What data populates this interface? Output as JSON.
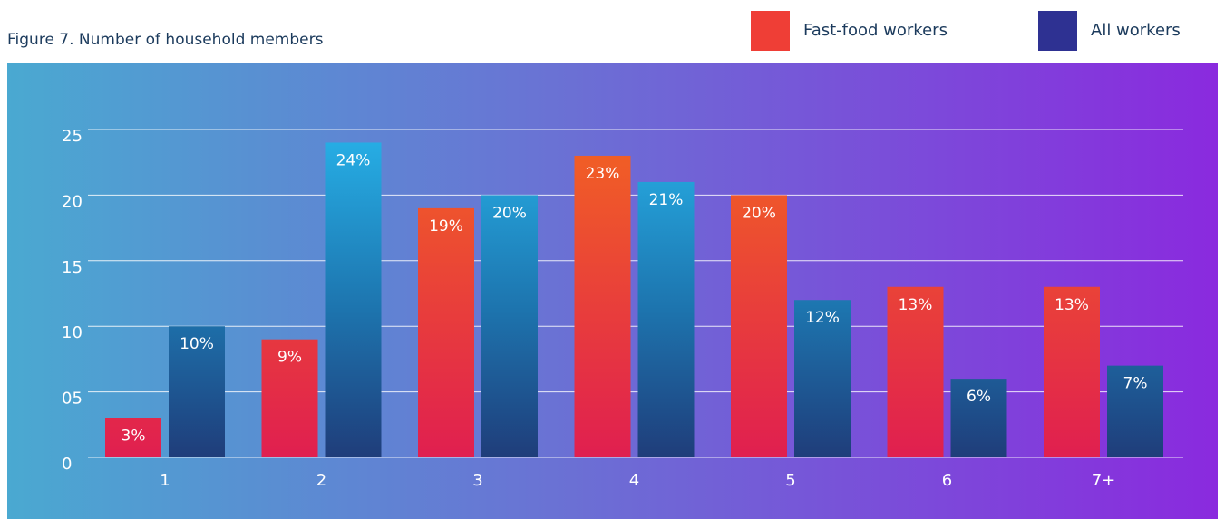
{
  "chart_data": {
    "type": "bar",
    "title": "Figure 7. Number of household members",
    "categories": [
      "1",
      "2",
      "3",
      "4",
      "5",
      "6",
      "7+"
    ],
    "series": [
      {
        "name": "Fast-food workers",
        "color": "#ef3e36",
        "values": [
          3,
          9,
          19,
          23,
          20,
          13,
          13
        ],
        "value_labels": [
          "3%",
          "9%",
          "19%",
          "23%",
          "20%",
          "13%",
          "13%"
        ]
      },
      {
        "name": "All workers",
        "color": "#2e3192",
        "values": [
          10,
          24,
          20,
          21,
          12,
          6,
          7
        ],
        "value_labels": [
          "10%",
          "24%",
          "20%",
          "21%",
          "12%",
          "6%",
          "7%"
        ]
      }
    ],
    "ylim": [
      0,
      25
    ],
    "yticks": [
      0,
      {
        "value": 5,
        "label": "05"
      },
      10,
      15,
      20,
      25
    ],
    "grid": true
  }
}
